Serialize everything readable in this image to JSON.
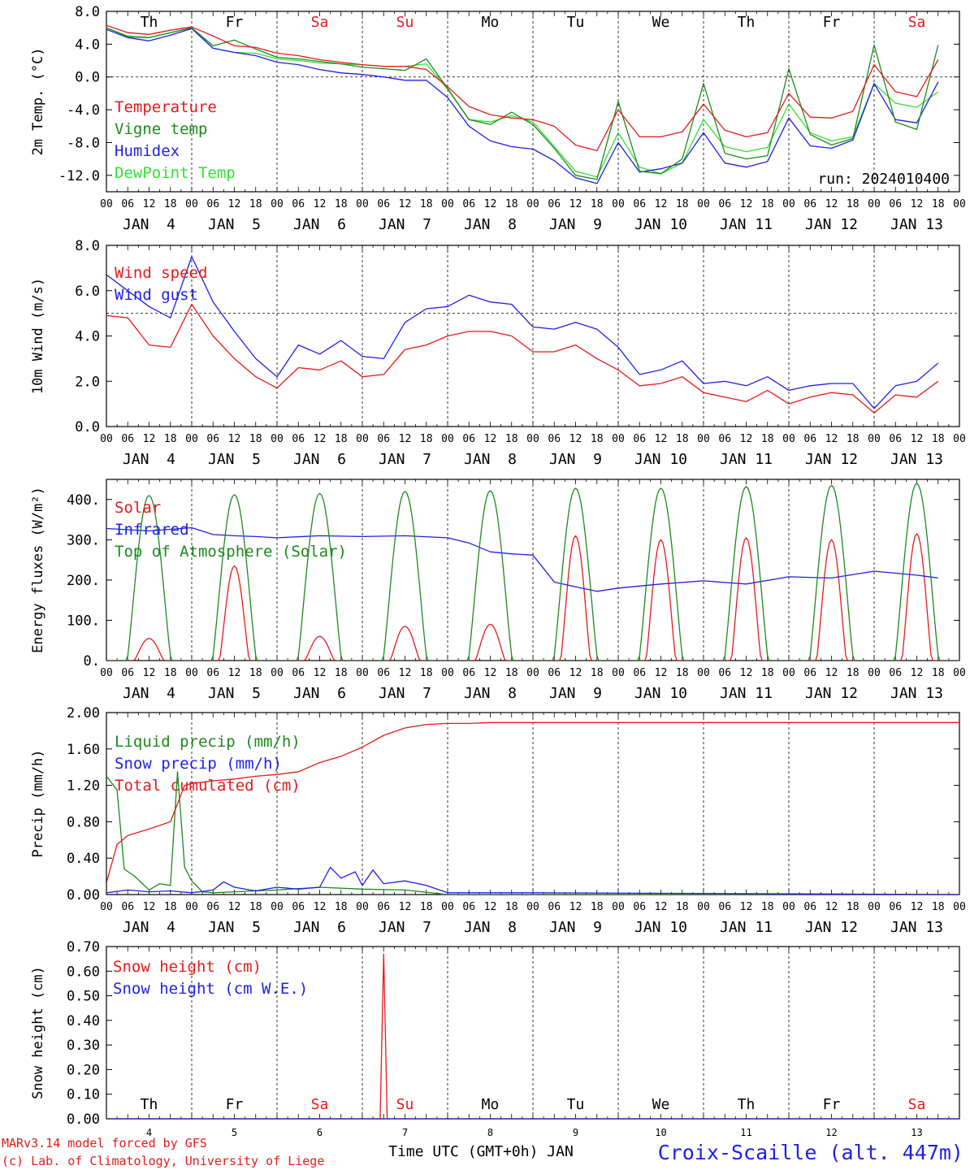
{
  "meta": {
    "run_label": "run: 2024010400",
    "credit_line1": "MARv3.14 model forced by GFS",
    "credit_line2": "(c) Lab. of Climatology, University of Liege",
    "station": "Croix-Scaille (alt. 447m)",
    "xaxis_title": "Time UTC (GMT+0h) JAN"
  },
  "days": {
    "weekday": [
      "Th",
      "Fr",
      "Sa",
      "Su",
      "Mo",
      "Tu",
      "We",
      "Th",
      "Fr",
      "Sa"
    ],
    "weekend_flags": [
      false,
      false,
      true,
      true,
      false,
      false,
      false,
      false,
      false,
      true
    ],
    "date_labels": [
      "JAN  4",
      "JAN  5",
      "JAN  6",
      "JAN  7",
      "JAN  8",
      "JAN  9",
      "JAN 10",
      "JAN 11",
      "JAN 12",
      "JAN 13"
    ],
    "day_numbers": [
      "4",
      "5",
      "6",
      "7",
      "8",
      "9",
      "10",
      "11",
      "12",
      "13"
    ],
    "hour_ticks": [
      "00",
      "06",
      "12",
      "18"
    ],
    "final_tick": "00"
  },
  "colors": {
    "red": "#e41a1c",
    "green": "#1b8a1b",
    "blue": "#1f1fe6",
    "lightgreen": "#33e033",
    "purple": "#8b1a8b"
  },
  "chart_data": [
    {
      "type": "line",
      "ylabel": "2m Temp. (°C)",
      "ylim": [
        -14,
        8
      ],
      "yticks": [
        "8.0",
        "4.0",
        "0.0",
        "-4.0",
        "-8.0",
        "-12.0"
      ],
      "ytick_values": [
        8,
        4,
        0,
        -4,
        -8,
        -12
      ],
      "hline": 0,
      "x_hours": [
        0,
        6,
        12,
        18,
        24,
        30,
        36,
        42,
        48,
        54,
        60,
        66,
        72,
        78,
        84,
        90,
        96,
        102,
        108,
        114,
        120,
        126,
        132,
        138,
        144,
        150,
        156,
        162,
        168,
        174,
        180,
        186,
        192,
        198,
        204,
        210,
        216,
        222,
        228,
        234
      ],
      "series": [
        {
          "name": "Temperature",
          "color": "red",
          "values": [
            6.3,
            5.4,
            5.2,
            5.7,
            6.1,
            5.0,
            3.8,
            3.6,
            2.9,
            2.6,
            2.1,
            1.8,
            1.5,
            1.3,
            1.3,
            0.9,
            -1.2,
            -3.6,
            -4.6,
            -5.0,
            -5.2,
            -6.0,
            -8.3,
            -9.0,
            -4.0,
            -7.3,
            -7.3,
            -6.7,
            -3.3,
            -6.5,
            -7.3,
            -6.8,
            -2.0,
            -4.9,
            -5.0,
            -4.2,
            1.5,
            -1.8,
            -2.4,
            2.1
          ]
        },
        {
          "name": "Vigne temp",
          "color": "green",
          "values": [
            6.0,
            4.9,
            4.8,
            5.4,
            6.0,
            3.8,
            4.5,
            3.4,
            2.4,
            2.2,
            1.9,
            1.6,
            1.2,
            1.0,
            0.8,
            2.2,
            -1.4,
            -5.2,
            -5.8,
            -4.3,
            -5.8,
            -8.7,
            -12.0,
            -12.5,
            -3.0,
            -11.5,
            -11.8,
            -10.0,
            -0.8,
            -9.3,
            -10.0,
            -9.6,
            1.0,
            -7.0,
            -8.3,
            -7.5,
            3.9,
            -5.5,
            -6.4,
            3.9
          ]
        },
        {
          "name": "Humidex",
          "color": "blue",
          "values": [
            5.8,
            4.8,
            4.4,
            5.1,
            5.9,
            3.5,
            3.0,
            2.6,
            1.8,
            1.5,
            0.9,
            0.5,
            0.3,
            0.0,
            -0.4,
            -0.4,
            -2.5,
            -6.0,
            -7.8,
            -8.5,
            -8.8,
            -10.2,
            -12.3,
            -13.0,
            -8.0,
            -11.6,
            -11.2,
            -10.5,
            -6.8,
            -10.5,
            -11.0,
            -10.3,
            -5.0,
            -8.4,
            -8.7,
            -7.7,
            -0.8,
            -5.2,
            -5.6,
            -0.6
          ]
        },
        {
          "name": "DewPoint Temp",
          "color": "lightgreen",
          "values": [
            6.0,
            5.0,
            4.8,
            5.4,
            6.0,
            3.5,
            3.0,
            2.9,
            2.2,
            2.0,
            1.7,
            1.6,
            1.5,
            1.3,
            1.3,
            1.6,
            -1.5,
            -5.2,
            -5.5,
            -4.7,
            -5.5,
            -8.5,
            -11.5,
            -12.2,
            -6.8,
            -11.0,
            -11.8,
            -10.5,
            -5.2,
            -8.5,
            -9.1,
            -8.6,
            -3.3,
            -6.8,
            -7.8,
            -7.3,
            -0.8,
            -3.2,
            -3.7,
            -1.8
          ]
        }
      ]
    },
    {
      "type": "line",
      "ylabel": "10m Wind (m/s)",
      "ylim": [
        0,
        8
      ],
      "yticks": [
        "8.0",
        "6.0",
        "4.0",
        "2.0",
        "0.0"
      ],
      "ytick_values": [
        8,
        6,
        4,
        2,
        0
      ],
      "hline": 5,
      "x_hours": [
        0,
        6,
        12,
        18,
        24,
        30,
        36,
        42,
        48,
        54,
        60,
        66,
        72,
        78,
        84,
        90,
        96,
        102,
        108,
        114,
        120,
        126,
        132,
        138,
        144,
        150,
        156,
        162,
        168,
        174,
        180,
        186,
        192,
        198,
        204,
        210,
        216,
        222,
        228,
        234
      ],
      "series": [
        {
          "name": "Wind speed",
          "color": "red",
          "values": [
            4.9,
            4.8,
            3.6,
            3.5,
            5.4,
            4.0,
            3.0,
            2.2,
            1.7,
            2.6,
            2.5,
            2.9,
            2.2,
            2.3,
            3.4,
            3.6,
            4.0,
            4.2,
            4.2,
            4.0,
            3.3,
            3.3,
            3.6,
            3.0,
            2.5,
            1.8,
            1.9,
            2.2,
            1.5,
            1.3,
            1.1,
            1.6,
            1.0,
            1.3,
            1.5,
            1.4,
            0.6,
            1.4,
            1.3,
            2.0
          ]
        },
        {
          "name": "Wind gust",
          "color": "blue",
          "values": [
            6.7,
            6.0,
            5.3,
            4.8,
            7.5,
            5.5,
            4.2,
            3.0,
            2.2,
            3.6,
            3.2,
            3.8,
            3.1,
            3.0,
            4.6,
            5.2,
            5.3,
            5.8,
            5.5,
            5.4,
            4.4,
            4.3,
            4.6,
            4.3,
            3.5,
            2.3,
            2.5,
            2.9,
            1.9,
            2.0,
            1.8,
            2.2,
            1.6,
            1.8,
            1.9,
            1.9,
            0.8,
            1.8,
            2.0,
            2.8
          ]
        }
      ]
    },
    {
      "type": "line",
      "ylabel": "Energy fluxes (W/m²)",
      "ylim": [
        0,
        450
      ],
      "yticks": [
        "400.",
        "300.",
        "200.",
        "100.",
        "0."
      ],
      "ytick_values": [
        400,
        300,
        200,
        100,
        0
      ],
      "day_peak_hour": 12,
      "series": [
        {
          "name": "Solar",
          "color": "red",
          "daily_peaks": [
            55,
            235,
            60,
            85,
            90,
            310,
            300,
            305,
            300,
            315
          ]
        },
        {
          "name": "Infrared",
          "color": "blue",
          "x_hours": [
            0,
            12,
            24,
            30,
            36,
            42,
            48,
            60,
            72,
            84,
            96,
            102,
            108,
            114,
            120,
            126,
            132,
            138,
            144,
            156,
            168,
            180,
            192,
            204,
            216,
            228,
            234
          ],
          "values": [
            328,
            322,
            330,
            313,
            310,
            308,
            305,
            310,
            308,
            310,
            305,
            292,
            270,
            265,
            262,
            195,
            183,
            172,
            180,
            190,
            198,
            190,
            208,
            205,
            222,
            212,
            205
          ]
        },
        {
          "name": "Top of Atmosphere (Solar)",
          "color": "green",
          "daily_peaks": [
            410,
            412,
            415,
            420,
            422,
            428,
            428,
            432,
            435,
            440
          ]
        }
      ]
    },
    {
      "type": "line",
      "ylabel": "Precip (mm/h)",
      "ylim": [
        0,
        2
      ],
      "yticks": [
        "2.00",
        "1.60",
        "1.20",
        "0.80",
        "0.40",
        "0.00"
      ],
      "ytick_values": [
        2,
        1.6,
        1.2,
        0.8,
        0.4,
        0
      ],
      "series": [
        {
          "name": "Liquid precip (mm/h)",
          "color": "green",
          "x_hours": [
            0,
            3,
            5,
            8,
            12,
            15,
            18,
            20,
            22,
            24,
            27,
            30,
            36,
            48,
            60,
            72,
            84,
            96,
            240
          ],
          "values": [
            1.3,
            1.15,
            0.28,
            0.2,
            0.05,
            0.12,
            0.1,
            1.35,
            0.3,
            0.15,
            0.03,
            0.02,
            0.03,
            0.05,
            0.08,
            0.06,
            0.05,
            0.0,
            0.0
          ]
        },
        {
          "name": "Snow precip (mm/h)",
          "color": "blue",
          "x_hours": [
            0,
            6,
            12,
            18,
            24,
            30,
            33,
            36,
            42,
            48,
            54,
            60,
            63,
            66,
            70,
            72,
            75,
            78,
            84,
            90,
            96,
            120,
            240
          ],
          "values": [
            0.02,
            0.05,
            0.03,
            0.04,
            0.02,
            0.05,
            0.14,
            0.08,
            0.04,
            0.08,
            0.06,
            0.08,
            0.3,
            0.18,
            0.25,
            0.1,
            0.27,
            0.12,
            0.15,
            0.1,
            0.02,
            0.02,
            0.0
          ]
        },
        {
          "name": "Total cumulated (cm)",
          "color": "red",
          "x_hours": [
            0,
            3,
            6,
            12,
            18,
            22,
            24,
            30,
            36,
            42,
            48,
            54,
            60,
            66,
            72,
            78,
            84,
            90,
            96,
            102,
            108,
            120,
            240
          ],
          "values": [
            0.13,
            0.55,
            0.65,
            0.72,
            0.8,
            1.2,
            1.22,
            1.25,
            1.27,
            1.3,
            1.32,
            1.35,
            1.45,
            1.52,
            1.62,
            1.75,
            1.83,
            1.87,
            1.88,
            1.88,
            1.89,
            1.89,
            1.89
          ]
        }
      ]
    },
    {
      "type": "line",
      "ylabel": "Snow height (cm)",
      "ylim": [
        0,
        0.7
      ],
      "yticks": [
        "0.70",
        "0.60",
        "0.50",
        "0.40",
        "0.30",
        "0.20",
        "0.10",
        "0.00"
      ],
      "ytick_values": [
        0.7,
        0.6,
        0.5,
        0.4,
        0.3,
        0.2,
        0.1,
        0
      ],
      "series": [
        {
          "name": "Snow height (cm)",
          "color": "red",
          "x_hours": [
            0,
            77,
            78,
            79,
            240
          ],
          "values": [
            0,
            0,
            0.67,
            0,
            0
          ]
        },
        {
          "name": "Snow height (cm W.E.)",
          "color": "blue",
          "x_hours": [
            0,
            240
          ],
          "values": [
            0,
            0
          ]
        }
      ]
    }
  ]
}
